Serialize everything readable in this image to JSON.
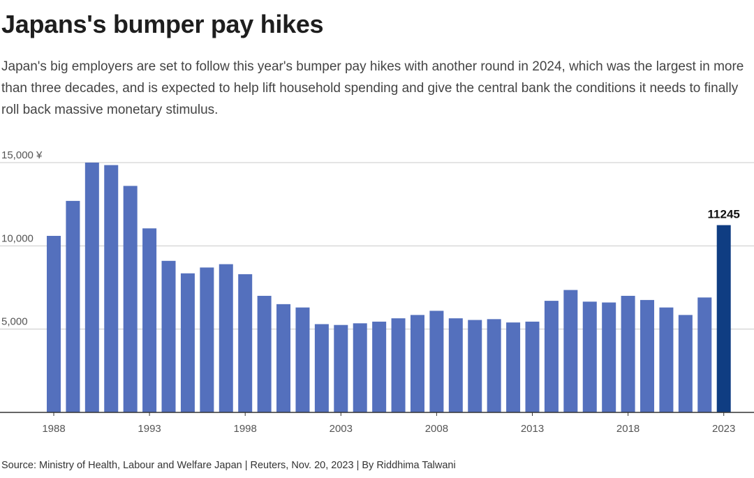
{
  "header": {
    "title": "Japans's bumper pay hikes",
    "subtitle": "Japan's big employers are set to follow this year's bumper pay hikes with another round in 2024, which was the largest in more than three decades, and is expected to help lift household spending and give the central bank the conditions it needs to finally roll back massive monetary stimulus."
  },
  "footer": {
    "source": "Source: Ministry of Health, Labour and Welfare Japan | Reuters, Nov. 20, 2023 | By Riddhima Talwani"
  },
  "colors": {
    "bar": "#5470bd",
    "highlight": "#0f3d82",
    "grid": "#c8c8c8",
    "axis": "#333333"
  },
  "chart_data": {
    "type": "bar",
    "title": "Japans's bumper pay hikes",
    "xlabel": "",
    "ylabel": "",
    "categories": [
      "1988",
      "1989",
      "1990",
      "1991",
      "1992",
      "1993",
      "1994",
      "1995",
      "1996",
      "1997",
      "1998",
      "1999",
      "2000",
      "2001",
      "2002",
      "2003",
      "2004",
      "2005",
      "2006",
      "2007",
      "2008",
      "2009",
      "2010",
      "2011",
      "2012",
      "2013",
      "2014",
      "2015",
      "2016",
      "2017",
      "2018",
      "2019",
      "2020",
      "2021",
      "2022",
      "2023"
    ],
    "values": [
      10600,
      12700,
      15000,
      14850,
      13600,
      11050,
      9100,
      8350,
      8700,
      8900,
      8300,
      7000,
      6500,
      6300,
      5300,
      5250,
      5350,
      5450,
      5650,
      5850,
      6100,
      5650,
      5550,
      5600,
      5400,
      5450,
      6700,
      7350,
      6650,
      6600,
      7000,
      6750,
      6300,
      5850,
      6900,
      11245
    ],
    "highlight": {
      "category": "2023",
      "label": "11245"
    },
    "ylim": [
      0,
      15000
    ],
    "yticks": [
      5000,
      10000,
      15000
    ],
    "ytick_labels": [
      "5,000",
      "10,000",
      "15,000 ¥"
    ],
    "xtick_labels": [
      "1988",
      "1993",
      "1998",
      "2003",
      "2008",
      "2013",
      "2018",
      "2023"
    ],
    "grid": true
  }
}
